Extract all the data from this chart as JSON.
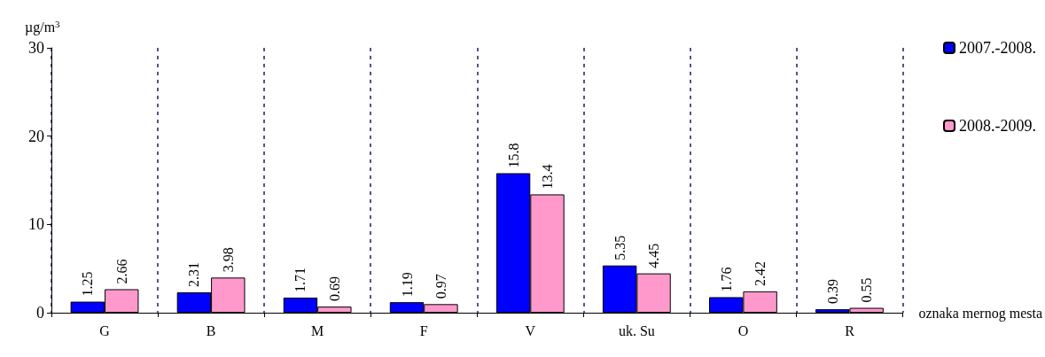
{
  "chart_data": {
    "type": "bar",
    "ylabel": "µg/m$^{3}$",
    "xlabel": "oznaka mernog mesta",
    "categories": [
      "G",
      "B",
      "M",
      "F",
      "V",
      "uk. Su",
      "O",
      "R"
    ],
    "series": [
      {
        "name": "2007.-2008.",
        "color": "#0000ff",
        "values": [
          1.25,
          2.31,
          1.71,
          1.19,
          15.8,
          5.35,
          1.76,
          0.39
        ]
      },
      {
        "name": "2008.-2009.",
        "color": "#ff99cc",
        "values": [
          2.66,
          3.98,
          0.69,
          0.97,
          13.4,
          4.45,
          2.42,
          0.55
        ]
      }
    ],
    "ylim": [
      0,
      30
    ],
    "yticks": [
      0,
      10,
      20,
      30
    ],
    "grid": "x",
    "legend": "right",
    "data_labels": true
  }
}
